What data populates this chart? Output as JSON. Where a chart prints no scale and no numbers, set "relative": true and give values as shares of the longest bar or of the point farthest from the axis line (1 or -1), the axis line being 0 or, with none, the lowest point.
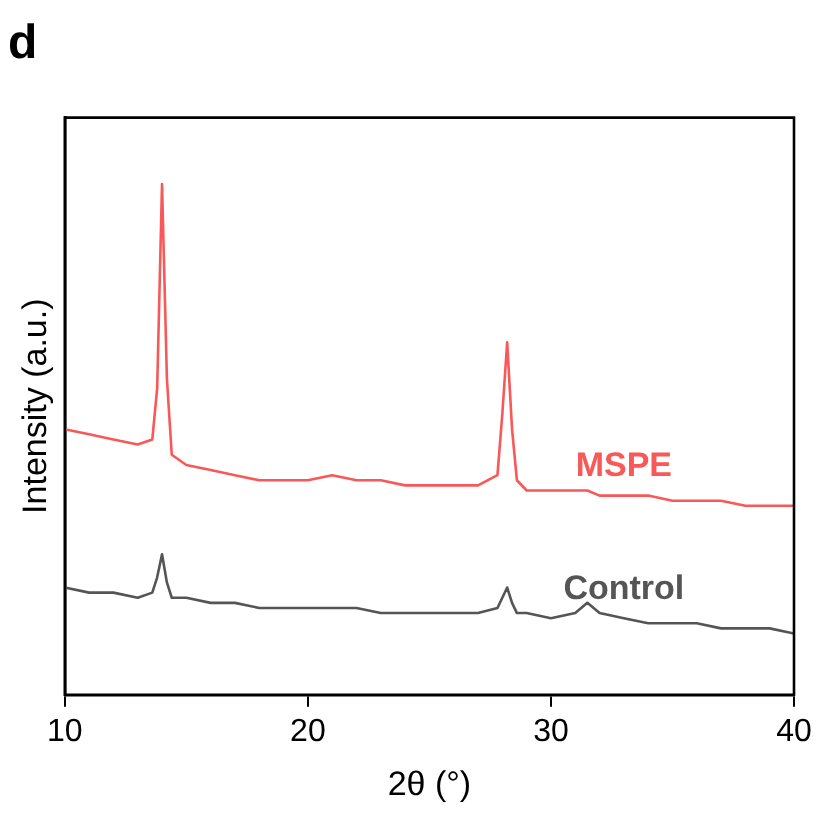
{
  "chart_data": {
    "type": "line",
    "title": "d",
    "xlabel": "2θ (°)",
    "ylabel": "Intensity (a.u.)",
    "relative": true,
    "legend": false,
    "grid": false,
    "marker": "none",
    "x": [
      10,
      11,
      12,
      13,
      13.6,
      13.8,
      14.0,
      14.2,
      14.4,
      15,
      16,
      17,
      18,
      19,
      20,
      21,
      22,
      23,
      24,
      25,
      26,
      27,
      27.8,
      28.0,
      28.2,
      28.4,
      28.6,
      29,
      30,
      31,
      31.5,
      32,
      33,
      34,
      35,
      36,
      37,
      38,
      39,
      40
    ],
    "xlim": [
      10,
      40
    ],
    "xticks": [
      10,
      20,
      30,
      40
    ],
    "series": [
      {
        "name": "MSPE",
        "color": "#f85858",
        "values": [
          0.52,
          0.51,
          0.5,
          0.49,
          0.5,
          0.6,
          1.0,
          0.62,
          0.47,
          0.45,
          0.44,
          0.43,
          0.42,
          0.42,
          0.42,
          0.43,
          0.42,
          0.42,
          0.41,
          0.41,
          0.41,
          0.41,
          0.43,
          0.55,
          0.69,
          0.52,
          0.42,
          0.4,
          0.4,
          0.4,
          0.4,
          0.39,
          0.39,
          0.39,
          0.38,
          0.38,
          0.38,
          0.37,
          0.37,
          0.37
        ]
      },
      {
        "name": "Control",
        "color": "#555555",
        "values": [
          0.21,
          0.2,
          0.2,
          0.19,
          0.2,
          0.23,
          0.275,
          0.22,
          0.19,
          0.19,
          0.18,
          0.18,
          0.17,
          0.17,
          0.17,
          0.17,
          0.17,
          0.16,
          0.16,
          0.16,
          0.16,
          0.16,
          0.17,
          0.19,
          0.21,
          0.18,
          0.16,
          0.16,
          0.15,
          0.16,
          0.18,
          0.16,
          0.15,
          0.14,
          0.14,
          0.14,
          0.13,
          0.13,
          0.13,
          0.12
        ]
      }
    ]
  }
}
